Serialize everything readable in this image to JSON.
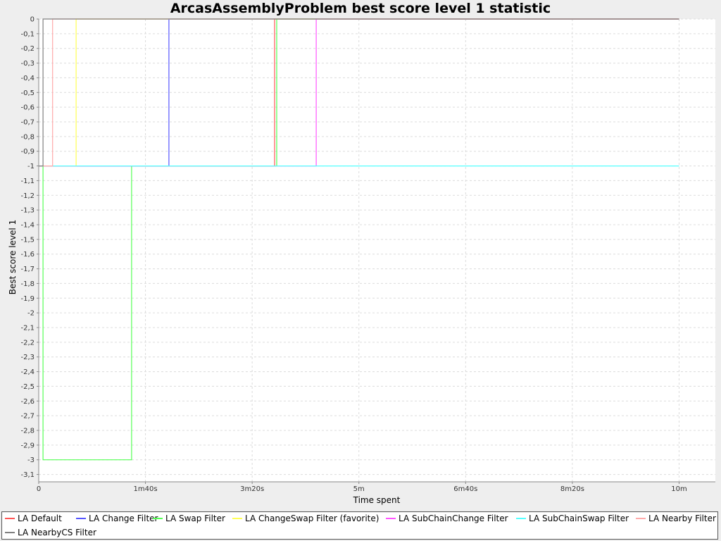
{
  "chart_data": {
    "type": "line",
    "step": true,
    "title": "ArcasAssemblyProblem best score level 1 statistic",
    "xlabel": "Time spent",
    "ylabel": "Best score level 1",
    "xlim": [
      0,
      634
    ],
    "ylim": [
      -3.15,
      0
    ],
    "grid": true,
    "legend_position": "bottom",
    "x_ticks": [
      {
        "value": 0,
        "label": "0"
      },
      {
        "value": 100,
        "label": "1m40s"
      },
      {
        "value": 200,
        "label": "3m20s"
      },
      {
        "value": 300,
        "label": "5m"
      },
      {
        "value": 400,
        "label": "6m40s"
      },
      {
        "value": 500,
        "label": "8m20s"
      },
      {
        "value": 600,
        "label": "10m"
      }
    ],
    "y_ticks": [
      {
        "value": 0,
        "label": "0"
      },
      {
        "value": -0.1,
        "label": "-0,1"
      },
      {
        "value": -0.2,
        "label": "-0,2"
      },
      {
        "value": -0.3,
        "label": "-0,3"
      },
      {
        "value": -0.4,
        "label": "-0,4"
      },
      {
        "value": -0.5,
        "label": "-0,5"
      },
      {
        "value": -0.6,
        "label": "-0,6"
      },
      {
        "value": -0.7,
        "label": "-0,7"
      },
      {
        "value": -0.8,
        "label": "-0,8"
      },
      {
        "value": -0.9,
        "label": "-0,9"
      },
      {
        "value": -1,
        "label": "-1"
      },
      {
        "value": -1.1,
        "label": "-1,1"
      },
      {
        "value": -1.2,
        "label": "-1,2"
      },
      {
        "value": -1.3,
        "label": "-1,3"
      },
      {
        "value": -1.4,
        "label": "-1,4"
      },
      {
        "value": -1.5,
        "label": "-1,5"
      },
      {
        "value": -1.6,
        "label": "-1,6"
      },
      {
        "value": -1.7,
        "label": "-1,7"
      },
      {
        "value": -1.8,
        "label": "-1,8"
      },
      {
        "value": -1.9,
        "label": "-1,9"
      },
      {
        "value": -2,
        "label": "-2"
      },
      {
        "value": -2.1,
        "label": "-2,1"
      },
      {
        "value": -2.2,
        "label": "-2,2"
      },
      {
        "value": -2.3,
        "label": "-2,3"
      },
      {
        "value": -2.4,
        "label": "-2,4"
      },
      {
        "value": -2.5,
        "label": "-2,5"
      },
      {
        "value": -2.6,
        "label": "-2,6"
      },
      {
        "value": -2.7,
        "label": "-2,7"
      },
      {
        "value": -2.8,
        "label": "-2,8"
      },
      {
        "value": -2.9,
        "label": "-2,9"
      },
      {
        "value": -3,
        "label": "-3"
      },
      {
        "value": -3.1,
        "label": "-3,1"
      }
    ],
    "series": [
      {
        "name": "LA Default",
        "color": "#ff5555",
        "points": [
          [
            0,
            -1
          ],
          [
            221,
            -1
          ],
          [
            221,
            0
          ],
          [
            600,
            0
          ]
        ]
      },
      {
        "name": "LA Change Filter",
        "color": "#5555ff",
        "points": [
          [
            0,
            -1
          ],
          [
            122,
            -1
          ],
          [
            122,
            0
          ],
          [
            600,
            0
          ]
        ]
      },
      {
        "name": "LA Swap Filter",
        "color": "#55ff55",
        "points": [
          [
            4,
            -1
          ],
          [
            4,
            -3
          ],
          [
            87,
            -3
          ],
          [
            87,
            -1
          ],
          [
            223,
            -1
          ],
          [
            223,
            0
          ],
          [
            600,
            0
          ]
        ]
      },
      {
        "name": "LA ChangeSwap Filter (favorite)",
        "color": "#ffff55",
        "points": [
          [
            0,
            -1
          ],
          [
            35,
            -1
          ],
          [
            35,
            0
          ],
          [
            600,
            0
          ]
        ]
      },
      {
        "name": "LA SubChainChange Filter",
        "color": "#ff55ff",
        "points": [
          [
            0,
            -1
          ],
          [
            260,
            -1
          ],
          [
            260,
            0
          ],
          [
            600,
            0
          ]
        ]
      },
      {
        "name": "LA SubChainSwap Filter",
        "color": "#55ffff",
        "points": [
          [
            0,
            -1
          ],
          [
            600,
            -1
          ]
        ]
      },
      {
        "name": "LA Nearby Filter",
        "color": "#ffaaaa",
        "points": [
          [
            0,
            -1
          ],
          [
            13,
            -1
          ],
          [
            13,
            0
          ],
          [
            600,
            0
          ]
        ]
      },
      {
        "name": "LA NearbyCS Filter",
        "color": "#808080",
        "points": [
          [
            0,
            -1
          ],
          [
            4,
            -1
          ],
          [
            4,
            0
          ],
          [
            600,
            0
          ]
        ]
      }
    ]
  }
}
